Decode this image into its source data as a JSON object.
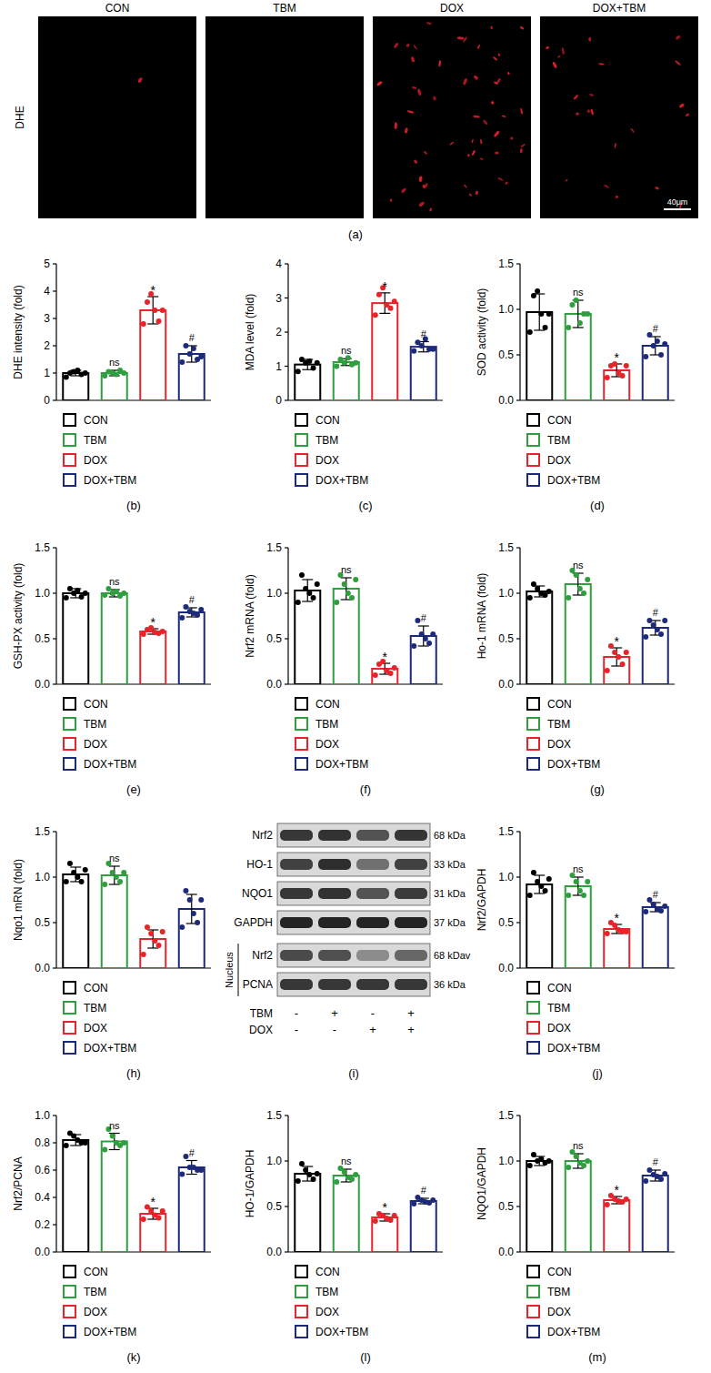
{
  "chart_data": [
    {
      "type": "bar",
      "panel_label": "(b)",
      "y_label": "DHE intensity (fold)",
      "categories": [
        "CON",
        "TBM",
        "DOX",
        "DOX+TBM"
      ],
      "colors": [
        "#000000",
        "#2e9e3e",
        "#e8232a",
        "#1d2a7a"
      ],
      "values": [
        1.0,
        1.0,
        3.3,
        1.7
      ],
      "errors": [
        0.1,
        0.1,
        0.5,
        0.3
      ],
      "points": [
        [
          0.85,
          1.0,
          1.05,
          1.1,
          0.95,
          1.0
        ],
        [
          0.9,
          1.05,
          1.0,
          0.95,
          1.1,
          1.0
        ],
        [
          2.8,
          3.6,
          3.9,
          3.3,
          2.9,
          3.3
        ],
        [
          1.4,
          2.0,
          1.7,
          1.9,
          1.5,
          1.6
        ]
      ],
      "annotations": [
        null,
        "ns",
        "*",
        "#"
      ],
      "ylim": [
        0,
        5
      ],
      "yticks": [
        0,
        1,
        2,
        3,
        4,
        5
      ],
      "legend": "bottom",
      "tick_labels": "y"
    },
    {
      "type": "bar",
      "panel_label": "(c)",
      "y_label": "MDA level (fold)",
      "categories": [
        "CON",
        "TBM",
        "DOX",
        "DOX+TBM"
      ],
      "colors": [
        "#000000",
        "#2e9e3e",
        "#e8232a",
        "#1d2a7a"
      ],
      "values": [
        1.05,
        1.12,
        2.85,
        1.57
      ],
      "errors": [
        0.15,
        0.1,
        0.3,
        0.15
      ],
      "points": [
        [
          0.85,
          1.2,
          1.1,
          1.15,
          0.95,
          1.1
        ],
        [
          1.0,
          1.2,
          1.1,
          1.25,
          1.05,
          1.1
        ],
        [
          2.5,
          3.1,
          3.3,
          2.8,
          2.7,
          2.9
        ],
        [
          1.45,
          1.7,
          1.6,
          1.8,
          1.5,
          1.5
        ]
      ],
      "annotations": [
        null,
        "ns",
        "*",
        "#"
      ],
      "ylim": [
        0,
        4
      ],
      "yticks": [
        0,
        1,
        2,
        3,
        4
      ],
      "legend": "bottom",
      "tick_labels": "y"
    },
    {
      "type": "bar",
      "panel_label": "(d)",
      "y_label": "SOD activity (fold)",
      "categories": [
        "CON",
        "TBM",
        "DOX",
        "DOX+TBM"
      ],
      "colors": [
        "#000000",
        "#2e9e3e",
        "#e8232a",
        "#1d2a7a"
      ],
      "values": [
        0.97,
        0.95,
        0.33,
        0.6
      ],
      "errors": [
        0.2,
        0.15,
        0.07,
        0.1
      ],
      "points": [
        [
          0.75,
          1.15,
          1.2,
          0.95,
          0.8,
          0.95
        ],
        [
          0.8,
          1.05,
          1.1,
          0.85,
          0.95,
          0.95
        ],
        [
          0.25,
          0.38,
          0.4,
          0.3,
          0.27,
          0.38
        ],
        [
          0.48,
          0.72,
          0.6,
          0.65,
          0.5,
          0.62
        ]
      ],
      "annotations": [
        null,
        "ns",
        "*",
        "#"
      ],
      "ylim": [
        0,
        1.5
      ],
      "yticks": [
        {
          "value": 0,
          "label": "0.0"
        },
        0.5,
        {
          "value": 1,
          "label": "1.0"
        },
        1.5
      ],
      "legend": "bottom",
      "tick_labels": "y"
    },
    {
      "type": "bar",
      "panel_label": "(e)",
      "y_label": "GSH-PX activity (fold)",
      "categories": [
        "CON",
        "TBM",
        "DOX",
        "DOX+TBM"
      ],
      "colors": [
        "#000000",
        "#2e9e3e",
        "#e8232a",
        "#1d2a7a"
      ],
      "values": [
        1.0,
        1.0,
        0.58,
        0.79
      ],
      "errors": [
        0.05,
        0.04,
        0.03,
        0.05
      ],
      "points": [
        [
          0.95,
          1.05,
          1.0,
          1.03,
          0.96,
          1.0
        ],
        [
          0.98,
          1.05,
          1.0,
          1.02,
          0.97,
          1.0
        ],
        [
          0.55,
          0.6,
          0.62,
          0.57,
          0.56,
          0.58
        ],
        [
          0.73,
          0.85,
          0.8,
          0.78,
          0.76,
          0.82
        ]
      ],
      "annotations": [
        null,
        "ns",
        "*",
        "#"
      ],
      "ylim": [
        0,
        1.5
      ],
      "yticks": [
        {
          "value": 0,
          "label": "0.0"
        },
        0.5,
        {
          "value": 1,
          "label": "1.0"
        },
        1.5
      ],
      "legend": "bottom",
      "tick_labels": "y"
    },
    {
      "type": "bar",
      "panel_label": "(f)",
      "y_label": "Nrf2 mRNA (fold)",
      "categories": [
        "CON",
        "TBM",
        "DOX",
        "DOX+TBM"
      ],
      "colors": [
        "#000000",
        "#2e9e3e",
        "#e8232a",
        "#1d2a7a"
      ],
      "values": [
        1.03,
        1.05,
        0.17,
        0.53
      ],
      "errors": [
        0.12,
        0.12,
        0.06,
        0.11
      ],
      "points": [
        [
          0.9,
          1.2,
          1.05,
          1.0,
          0.95,
          1.1
        ],
        [
          0.9,
          1.2,
          1.1,
          1.0,
          0.95,
          1.15
        ],
        [
          0.1,
          0.22,
          0.25,
          0.15,
          0.12,
          0.18
        ],
        [
          0.42,
          0.7,
          0.55,
          0.5,
          0.45,
          0.55
        ]
      ],
      "annotations": [
        null,
        "ns",
        "*",
        "#"
      ],
      "ylim": [
        0,
        1.5
      ],
      "yticks": [
        {
          "value": 0,
          "label": "0.0"
        },
        0.5,
        {
          "value": 1,
          "label": "1.0"
        },
        1.5
      ],
      "legend": "bottom",
      "tick_labels": "y"
    },
    {
      "type": "bar",
      "panel_label": "(g)",
      "y_label": "Ho-1 mRNA (fold)",
      "categories": [
        "CON",
        "TBM",
        "DOX",
        "DOX+TBM"
      ],
      "colors": [
        "#000000",
        "#2e9e3e",
        "#e8232a",
        "#1d2a7a"
      ],
      "values": [
        1.02,
        1.1,
        0.3,
        0.62
      ],
      "errors": [
        0.06,
        0.12,
        0.1,
        0.08
      ],
      "points": [
        [
          0.95,
          1.1,
          1.05,
          1.0,
          0.98,
          1.02
        ],
        [
          0.95,
          1.25,
          1.2,
          1.05,
          1.0,
          1.15
        ],
        [
          0.15,
          0.42,
          0.35,
          0.3,
          0.22,
          0.35
        ],
        [
          0.52,
          0.7,
          0.65,
          0.6,
          0.55,
          0.7
        ]
      ],
      "annotations": [
        null,
        "ns",
        "*",
        "#"
      ],
      "ylim": [
        0,
        1.5
      ],
      "yticks": [
        {
          "value": 0,
          "label": "0.0"
        },
        0.5,
        {
          "value": 1,
          "label": "1.0"
        },
        1.5
      ],
      "legend": "bottom",
      "tick_labels": "y"
    },
    {
      "type": "bar",
      "panel_label": "(h)",
      "y_label": "Nqo1 mRN (fold)",
      "categories": [
        "CON",
        "TBM",
        "DOX",
        "DOX+TBM"
      ],
      "colors": [
        "#000000",
        "#2e9e3e",
        "#e8232a",
        "#1d2a7a"
      ],
      "values": [
        1.03,
        1.02,
        0.32,
        0.65
      ],
      "errors": [
        0.08,
        0.1,
        0.1,
        0.16
      ],
      "points": [
        [
          0.95,
          1.15,
          1.05,
          1.0,
          0.95,
          1.08
        ],
        [
          0.92,
          1.15,
          1.05,
          1.0,
          0.95,
          1.05
        ],
        [
          0.15,
          0.45,
          0.38,
          0.3,
          0.25,
          0.4
        ],
        [
          0.45,
          0.85,
          0.75,
          0.6,
          0.5,
          0.75
        ]
      ],
      "annotations": [
        null,
        "ns",
        null,
        null
      ],
      "ylim": [
        0,
        1.5
      ],
      "yticks": [
        {
          "value": 0,
          "label": "0.0"
        },
        0.5,
        {
          "value": 1,
          "label": "1.0"
        },
        1.5
      ],
      "legend": "bottom",
      "tick_labels": "y"
    },
    {
      "type": "bar",
      "panel_label": "(j)",
      "y_label": "Nrf2/GAPDH",
      "categories": [
        "CON",
        "TBM",
        "DOX",
        "DOX+TBM"
      ],
      "colors": [
        "#000000",
        "#2e9e3e",
        "#e8232a",
        "#1d2a7a"
      ],
      "values": [
        0.92,
        0.9,
        0.43,
        0.67
      ],
      "errors": [
        0.1,
        0.1,
        0.05,
        0.05
      ],
      "points": [
        [
          0.8,
          1.05,
          0.95,
          0.9,
          0.85,
          0.98
        ],
        [
          0.8,
          1.02,
          0.95,
          0.85,
          0.8,
          0.95
        ],
        [
          0.38,
          0.5,
          0.47,
          0.42,
          0.4,
          0.4
        ],
        [
          0.62,
          0.75,
          0.7,
          0.65,
          0.63,
          0.68
        ]
      ],
      "annotations": [
        null,
        "ns",
        "*",
        "#"
      ],
      "ylim": [
        0,
        1.5
      ],
      "yticks": [
        {
          "value": 0,
          "label": "0.0"
        },
        0.5,
        {
          "value": 1,
          "label": "1.0"
        },
        1.5
      ],
      "legend": "bottom",
      "tick_labels": "y"
    },
    {
      "type": "bar",
      "panel_label": "(k)",
      "y_label": "Nrf2/PCNA",
      "categories": [
        "CON",
        "TBM",
        "DOX",
        "DOX+TBM"
      ],
      "colors": [
        "#000000",
        "#2e9e3e",
        "#e8232a",
        "#1d2a7a"
      ],
      "values": [
        0.82,
        0.81,
        0.28,
        0.62
      ],
      "errors": [
        0.04,
        0.06,
        0.04,
        0.05
      ],
      "points": [
        [
          0.78,
          0.87,
          0.85,
          0.82,
          0.8,
          0.8
        ],
        [
          0.75,
          0.9,
          0.85,
          0.8,
          0.78,
          0.8
        ],
        [
          0.24,
          0.33,
          0.3,
          0.27,
          0.25,
          0.3
        ],
        [
          0.57,
          0.7,
          0.62,
          0.62,
          0.6,
          0.6
        ]
      ],
      "annotations": [
        null,
        "ns",
        "*",
        "#"
      ],
      "ylim": [
        0,
        1
      ],
      "yticks": [
        {
          "value": 0,
          "label": "0.0"
        },
        0.2,
        0.4,
        0.6,
        0.8,
        {
          "value": 1,
          "label": "1.0"
        }
      ],
      "legend": "bottom",
      "tick_labels": "y"
    },
    {
      "type": "bar",
      "panel_label": "(l)",
      "y_label": "HO-1/GAPDH",
      "categories": [
        "CON",
        "TBM",
        "DOX",
        "DOX+TBM"
      ],
      "colors": [
        "#000000",
        "#2e9e3e",
        "#e8232a",
        "#1d2a7a"
      ],
      "values": [
        0.86,
        0.84,
        0.38,
        0.56
      ],
      "errors": [
        0.08,
        0.07,
        0.04,
        0.03
      ],
      "points": [
        [
          0.78,
          0.97,
          0.9,
          0.85,
          0.8,
          0.86
        ],
        [
          0.77,
          0.92,
          0.88,
          0.82,
          0.8,
          0.85
        ],
        [
          0.34,
          0.42,
          0.4,
          0.37,
          0.35,
          0.4
        ],
        [
          0.53,
          0.6,
          0.57,
          0.55,
          0.54,
          0.57
        ]
      ],
      "annotations": [
        null,
        "ns",
        "*",
        "#"
      ],
      "ylim": [
        0,
        1.5
      ],
      "yticks": [
        {
          "value": 0,
          "label": "0.0"
        },
        0.5,
        {
          "value": 1,
          "label": "1.0"
        },
        1.5
      ],
      "legend": "bottom",
      "tick_labels": "y"
    },
    {
      "type": "bar",
      "panel_label": "(m)",
      "y_label": "NQO1/GAPDH",
      "categories": [
        "CON",
        "TBM",
        "DOX",
        "DOX+TBM"
      ],
      "colors": [
        "#000000",
        "#2e9e3e",
        "#e8232a",
        "#1d2a7a"
      ],
      "values": [
        1.0,
        1.0,
        0.57,
        0.84
      ],
      "errors": [
        0.05,
        0.08,
        0.04,
        0.06
      ],
      "points": [
        [
          0.95,
          1.07,
          1.0,
          1.02,
          0.98,
          1.0
        ],
        [
          0.93,
          1.1,
          1.05,
          0.98,
          0.95,
          1.0
        ],
        [
          0.52,
          0.62,
          0.58,
          0.56,
          0.55,
          0.58
        ],
        [
          0.78,
          0.9,
          0.85,
          0.83,
          0.8,
          0.86
        ]
      ],
      "annotations": [
        null,
        "ns",
        "*",
        "#"
      ],
      "ylim": [
        0,
        1.5
      ],
      "yticks": [
        {
          "value": 0,
          "label": "0.0"
        },
        0.5,
        {
          "value": 1,
          "label": "1.0"
        },
        1.5
      ],
      "legend": "bottom",
      "tick_labels": "y"
    }
  ],
  "image_panel": {
    "label": "(a)",
    "row_label": "DHE",
    "columns": [
      "CON",
      "TBM",
      "DOX",
      "DOX+TBM"
    ],
    "scale_bar": "40μm"
  },
  "blot_panel": {
    "label": "(i)",
    "rows": [
      {
        "protein": "Nrf2",
        "size": "68 kDa"
      },
      {
        "protein": "HO-1",
        "size": "33 kDa"
      },
      {
        "protein": "NQO1",
        "size": "31 kDa"
      },
      {
        "protein": "GAPDH",
        "size": "37 kDa"
      }
    ],
    "nucleus_label": "Nucleus",
    "nucleus_rows": [
      {
        "protein": "Nrf2",
        "size": "68 kDav"
      },
      {
        "protein": "PCNA",
        "size": "36 kDa"
      }
    ],
    "treatments": [
      {
        "name": "TBM",
        "signs": [
          "-",
          "+",
          "-",
          "+"
        ]
      },
      {
        "name": "DOX",
        "signs": [
          "-",
          "-",
          "+",
          "+"
        ]
      }
    ]
  }
}
